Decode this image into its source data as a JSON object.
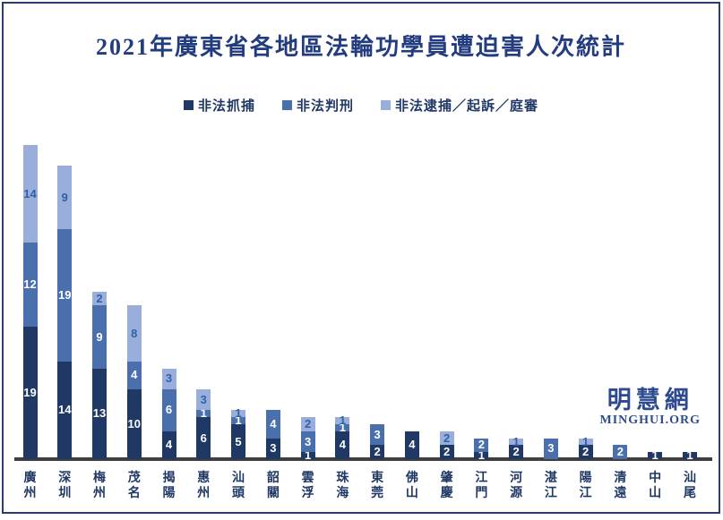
{
  "title": "2021年廣東省各地區法輪功學員遭迫害人次統計",
  "watermark": {
    "cjk": "明慧網",
    "latin": "MINGHUI.ORG"
  },
  "colors": {
    "border": "#2A3E6E",
    "title_text": "#233C7F",
    "axis_line": "#3F3F3F",
    "category_text": "#1F3864",
    "series_dark": "#1F3864",
    "series_medium": "#4A6FAD",
    "series_light": "#9AAEDB",
    "light_label_text": "#2E61A8",
    "watermark_text": "#2D4A8F"
  },
  "chart_data": {
    "type": "bar",
    "stacked": true,
    "title": "2021年廣東省各地區法輪功學員遭迫害人次統計",
    "xlabel": "",
    "ylabel": "",
    "ylim": [
      0,
      45
    ],
    "grid": false,
    "legend_position": "top",
    "value_labels": true,
    "categories": [
      "廣州",
      "深圳",
      "梅州",
      "茂名",
      "揭陽",
      "惠州",
      "汕頭",
      "韶關",
      "雲浮",
      "珠海",
      "東莞",
      "佛山",
      "肇慶",
      "江門",
      "河源",
      "湛江",
      "陽江",
      "清遠",
      "中山",
      "汕尾"
    ],
    "series": [
      {
        "name": "非法抓捕",
        "color": "#1F3864",
        "label_color": "#FFFFFF",
        "values": [
          19,
          14,
          13,
          10,
          4,
          6,
          5,
          3,
          1,
          4,
          2,
          4,
          2,
          1,
          2,
          0,
          2,
          0,
          1,
          1
        ]
      },
      {
        "name": "非法判刑",
        "color": "#4A6FAD",
        "label_color": "#FFFFFF",
        "values": [
          12,
          19,
          9,
          4,
          6,
          1,
          1,
          4,
          3,
          1,
          3,
          0,
          0,
          2,
          0,
          3,
          0,
          2,
          0,
          0
        ]
      },
      {
        "name": "非法逮捕／起訴／庭審",
        "color": "#9AAEDB",
        "label_color": "#2E61A8",
        "values": [
          14,
          9,
          2,
          8,
          3,
          3,
          1,
          0,
          2,
          1,
          0,
          0,
          2,
          0,
          1,
          0,
          1,
          0,
          0,
          0
        ]
      }
    ]
  }
}
